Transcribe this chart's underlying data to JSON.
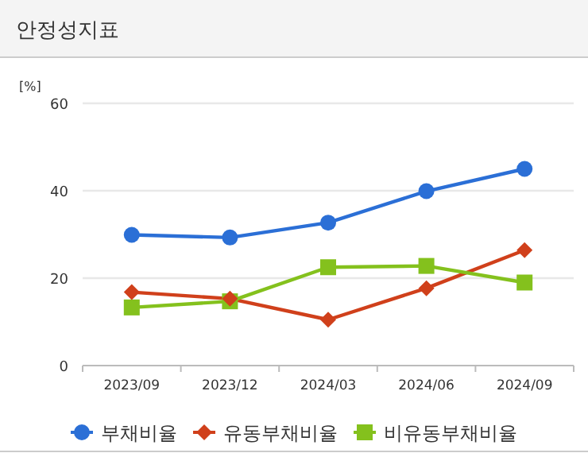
{
  "chart_data": {
    "type": "line",
    "title": "안정성지표",
    "ylabel": "[%]",
    "categories": [
      "2023/09",
      "2023/12",
      "2024/03",
      "2024/06",
      "2024/09"
    ],
    "series": [
      {
        "name": "부채비율",
        "color": "#2b6fd6",
        "marker": "circle",
        "values": [
          29.9,
          29.3,
          32.7,
          39.9,
          45.0
        ]
      },
      {
        "name": "유동부채비율",
        "color": "#d0401b",
        "marker": "diamond",
        "values": [
          16.8,
          15.3,
          10.5,
          17.7,
          26.4
        ]
      },
      {
        "name": "비유동부채비율",
        "color": "#84c11d",
        "marker": "square",
        "values": [
          13.3,
          14.7,
          22.5,
          22.8,
          19.0
        ]
      }
    ],
    "ylim": [
      0,
      60
    ],
    "yticks": [
      0,
      20,
      40,
      60
    ],
    "grid": "y",
    "legend": "bottom"
  }
}
